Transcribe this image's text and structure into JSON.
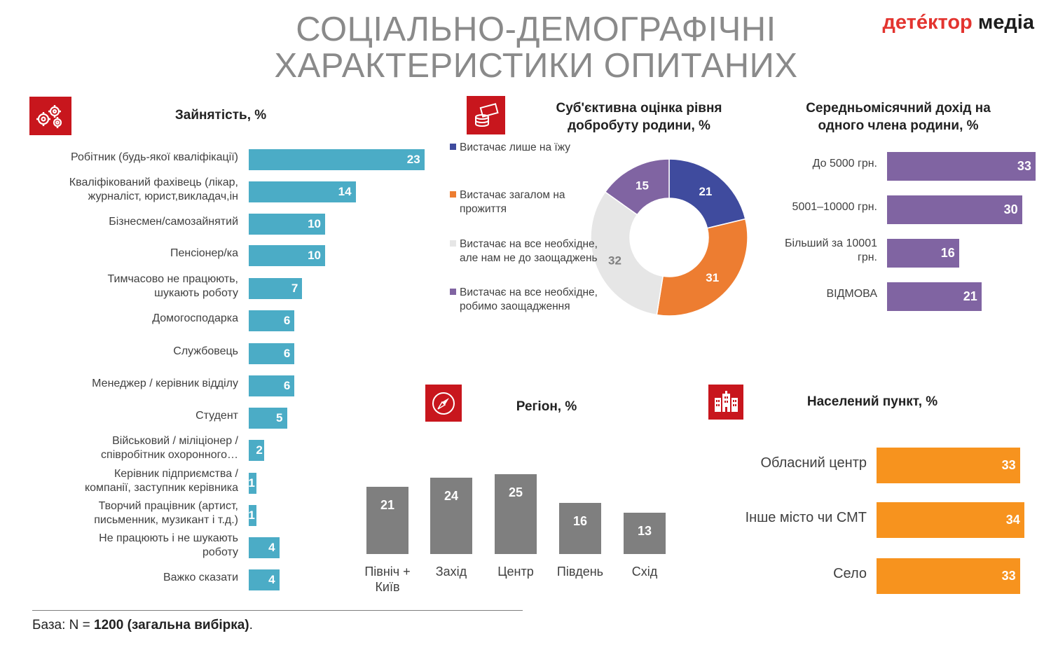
{
  "header": {
    "title_line1": "СОЦІАЛЬНО-ДЕМОГРАФІЧНІ",
    "title_line2": "ХАРАКТЕРИСТИКИ ОПИТАНИХ",
    "logo_part1": "детéктор",
    "logo_part2": "медіа"
  },
  "footer": {
    "prefix": "База: N = ",
    "bold": "1200 (загальна вибірка)",
    "suffix": "."
  },
  "icons": {
    "employment": "gears-icon",
    "welfare": "money-icon",
    "region": "compass-icon",
    "settlement": "buildings-icon"
  },
  "chart_data": [
    {
      "id": "employment",
      "type": "bar",
      "orientation": "horizontal",
      "title": "Зайнятість, %",
      "color": "#4bacc6",
      "categories": [
        [
          "Робітник (будь-якої кваліфікації)"
        ],
        [
          "Кваліфікований фахівець (лікар,",
          "журналіст, юрист,викладач,ін"
        ],
        [
          "Бізнесмен/самозайнятий"
        ],
        [
          "Пенсіонер/ка"
        ],
        [
          "Тимчасово не працюють,",
          "шукають роботу"
        ],
        [
          "Домогосподарка"
        ],
        [
          "Службовець"
        ],
        [
          "Менеджер / керівник відділу"
        ],
        [
          "Студент"
        ],
        [
          "Військовий / міліціонер /",
          "співробітник охоронного…"
        ],
        [
          "Керівник підприємства /",
          "компанії, заступник керівника"
        ],
        [
          "Творчий працівник (артист,",
          "письменник, музикант і т.д.)"
        ],
        [
          "Не працюють і не шукають",
          "роботу"
        ],
        [
          "Важко сказати"
        ]
      ],
      "values": [
        23,
        14,
        10,
        10,
        7,
        6,
        6,
        6,
        5,
        2,
        1,
        1,
        4,
        4
      ]
    },
    {
      "id": "welfare",
      "type": "pie",
      "title": "Суб'єктивна оцінка рівня добробуту родини, %",
      "legend_placement": "left",
      "series": [
        {
          "name": "Вистачає лише на їжу",
          "value": 21,
          "color": "#3f4b9e"
        },
        {
          "name": "Вистачає загалом на прожиття",
          "value": 31,
          "color": "#ed7d31"
        },
        {
          "name": "Вистачає на все необхідне, але нам не до заощаджень",
          "value": 32,
          "color": "#e6e6e6"
        },
        {
          "name": "Вистачає на все необхідне, робимо заощадження",
          "value": 15,
          "color": "#8064a2"
        }
      ]
    },
    {
      "id": "income",
      "type": "bar",
      "orientation": "horizontal",
      "title": "Середньомісячний дохід на одного члена родини, %",
      "color": "#8064a2",
      "categories": [
        [
          "До 5000 грн."
        ],
        [
          "5001–10000 грн."
        ],
        [
          "Більший за 10001",
          "грн."
        ],
        [
          "ВІДМОВА"
        ]
      ],
      "values": [
        33,
        30,
        16,
        21
      ]
    },
    {
      "id": "region",
      "type": "bar",
      "orientation": "vertical",
      "title": "Регіон, %",
      "color": "#7f7f7f",
      "categories": [
        [
          "Північ +",
          "Київ"
        ],
        [
          "Захід"
        ],
        [
          "Центр"
        ],
        [
          "Південь"
        ],
        [
          "Схід"
        ]
      ],
      "values": [
        21,
        24,
        25,
        16,
        13
      ]
    },
    {
      "id": "settlement",
      "type": "bar",
      "orientation": "horizontal",
      "title": "Населений пункт, %",
      "color": "#f7931e",
      "categories": [
        [
          "Обласний центр"
        ],
        [
          "Інше місто чи СМТ"
        ],
        [
          "Село"
        ]
      ],
      "values": [
        33,
        34,
        33
      ]
    }
  ]
}
